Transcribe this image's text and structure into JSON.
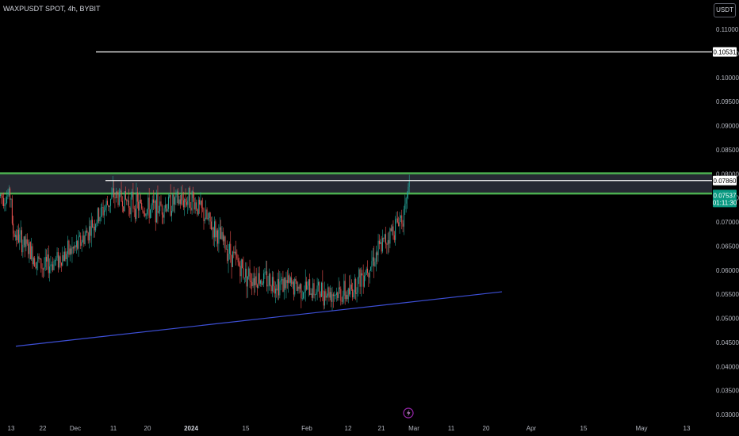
{
  "header": {
    "symbol_title": "WAXPUSDT SPOT, 4h, BYBIT",
    "currency_button": "USDT"
  },
  "colors": {
    "background": "#000000",
    "up_candle": "#26a69a",
    "down_candle": "#ef5350",
    "zone_border": "#4caf50",
    "zone_fill": "#2a2e39",
    "trendline": "#3d4fd6",
    "level_line": "#ffffff",
    "price_tag": "#089981",
    "event_icon": "#9c27b0"
  },
  "chart_data": {
    "type": "candlestick",
    "symbol": "WAXPUSDT SPOT",
    "timeframe": "4h",
    "exchange": "BYBIT",
    "x_ticks": [
      "13",
      "22",
      "Dec",
      "11",
      "20",
      "2024",
      "15",
      "Feb",
      "12",
      "21",
      "Mar",
      "11",
      "20",
      "Apr",
      "15",
      "May",
      "13"
    ],
    "y_ticks": [
      "0.11000",
      "0.10500",
      "0.10000",
      "0.09500",
      "0.09000",
      "0.08500",
      "0.08000",
      "0.07500",
      "0.07000",
      "0.06500",
      "0.06000",
      "0.05500",
      "0.05000",
      "0.04500",
      "0.04000",
      "0.03500",
      "0.03000"
    ],
    "ylim": [
      0.03,
      0.11
    ],
    "last_price": "0.07537",
    "countdown": "01:11:30",
    "horizontal_levels": [
      {
        "label": "0.10531",
        "value": 0.10531
      },
      {
        "label": "0.07860",
        "value": 0.0786
      }
    ],
    "resistance_zone": {
      "low": 0.0759,
      "high": 0.0801
    },
    "trendline": {
      "from_x": "13",
      "from_y": 0.0442,
      "to_x": "20",
      "to_y": 0.0555
    },
    "price_path": [
      [
        "13",
        0.0685
      ],
      [
        "22",
        0.0605
      ],
      [
        "Dec",
        0.0645
      ],
      [
        "11",
        0.0755
      ],
      [
        "20",
        0.0725
      ],
      [
        "2024",
        0.075
      ],
      [
        "15",
        0.059
      ],
      [
        "Feb",
        0.056
      ],
      [
        "12",
        0.055
      ],
      [
        "21",
        0.065
      ],
      [
        "Mar",
        0.0754
      ]
    ]
  }
}
